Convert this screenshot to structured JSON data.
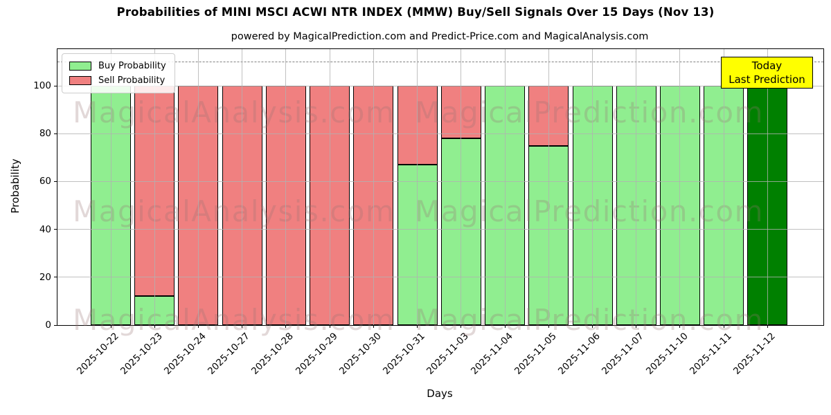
{
  "chart_data": {
    "type": "bar",
    "stacked": true,
    "title": "Probabilities of MINI MSCI ACWI NTR INDEX (MMW) Buy/Sell Signals Over 15 Days (Nov 13)",
    "subtitle": "powered by MagicalPrediction.com and Predict-Price.com and MagicalAnalysis.com",
    "xlabel": "Days",
    "ylabel": "Probability",
    "categories": [
      "2025-10-22",
      "2025-10-23",
      "2025-10-24",
      "2025-10-27",
      "2025-10-28",
      "2025-10-29",
      "2025-10-30",
      "2025-10-31",
      "2025-11-03",
      "2025-11-04",
      "2025-11-05",
      "2025-11-06",
      "2025-11-07",
      "2025-11-10",
      "2025-11-11",
      "2025-11-12"
    ],
    "series": [
      {
        "name": "Buy Probability",
        "color": "#90ee90",
        "values": [
          100,
          12,
          0,
          0,
          0,
          0,
          0,
          67,
          78,
          100,
          75,
          100,
          100,
          100,
          100,
          100
        ]
      },
      {
        "name": "Sell Probability",
        "color": "#f08080",
        "values": [
          0,
          88,
          100,
          100,
          100,
          100,
          100,
          33,
          22,
          0,
          25,
          0,
          0,
          0,
          0,
          0
        ]
      }
    ],
    "last_bar_highlight_color": "#008000",
    "bar_edge_color": "#000000",
    "ylim": [
      0,
      115
    ],
    "yticks": [
      0,
      20,
      40,
      60,
      80,
      100
    ],
    "grid": true,
    "grid_color": "#b0b0b0",
    "dashed_line_y": 110,
    "dashed_line_color": "#7f7f7f",
    "legend_position": "upper left",
    "annotation": {
      "line1": "Today",
      "line2": "Last Prediction",
      "bg_color": "#ffff00"
    },
    "watermark_left": "MagicalAnalysis.com",
    "watermark_right": "MagicalPrediction.com"
  }
}
